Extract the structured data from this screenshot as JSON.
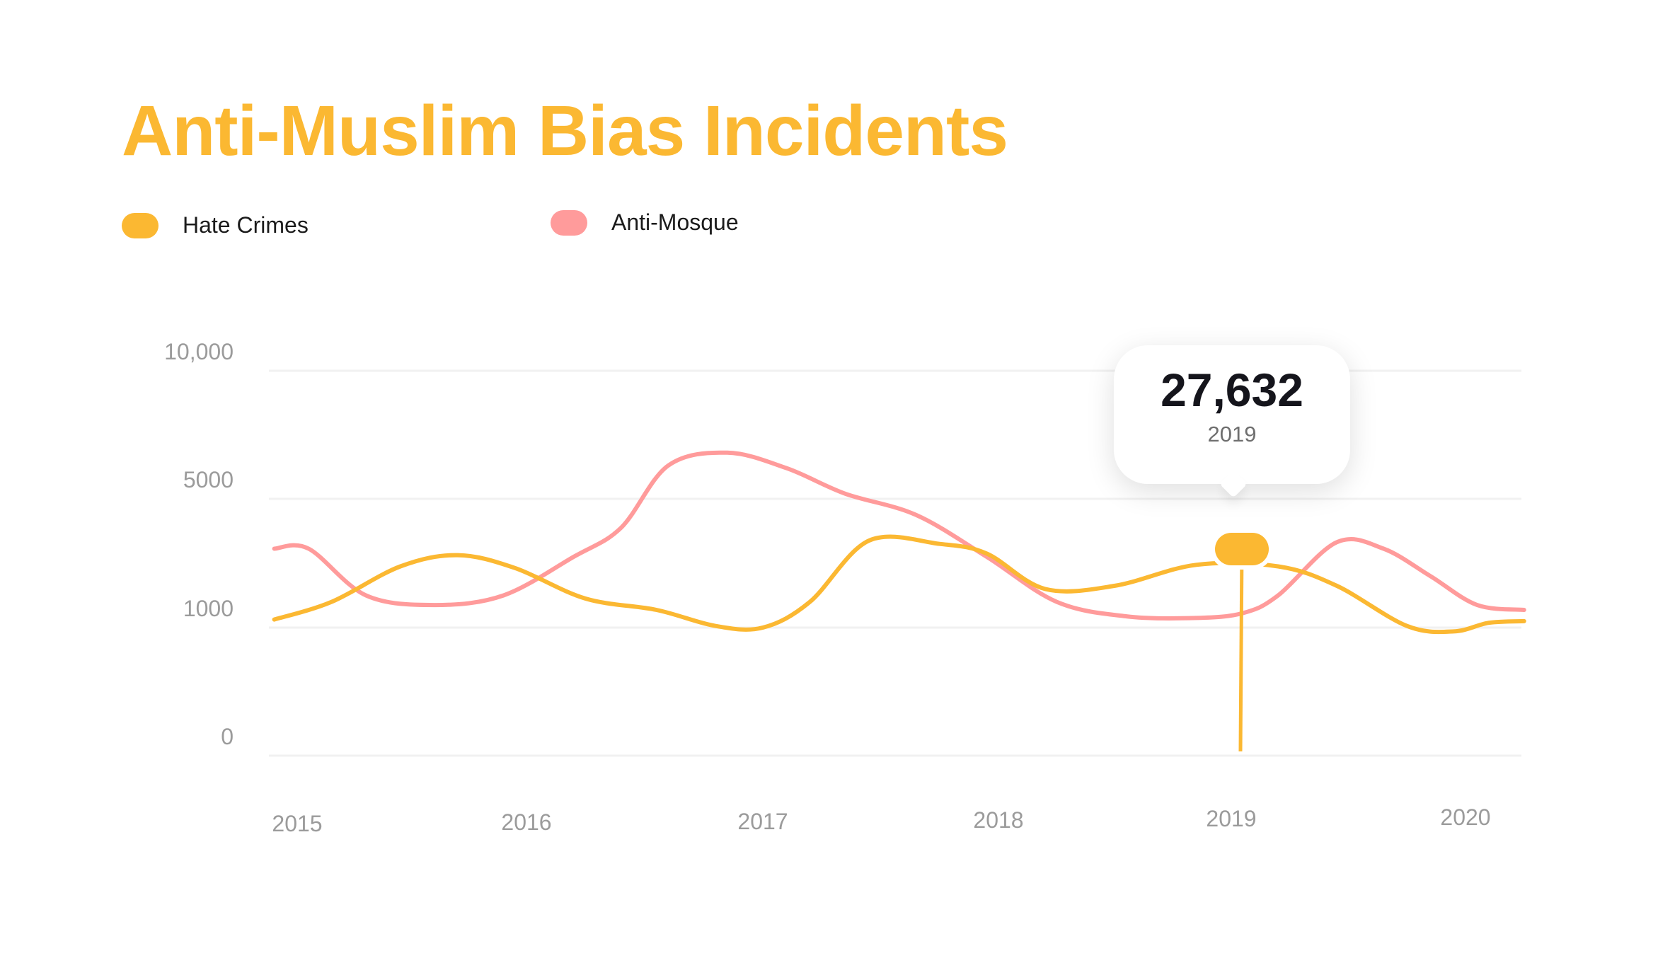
{
  "colors": {
    "title": "#FBB832",
    "hate_crimes": "#FBB832",
    "anti_mosque": "#FF9B9B"
  },
  "chart_data": {
    "type": "line",
    "title": "Anti-Muslim Bias Incidents",
    "xlabel": "",
    "ylabel": "",
    "x_ticks": [
      "2015",
      "2016",
      "2017",
      "2018",
      "2019",
      "2020"
    ],
    "y_ticks": [
      "0",
      "1000",
      "5000",
      "10,000"
    ],
    "y_scale": "nonlinear (tick spacing equal for 0, 1000, 5000, 10,000)",
    "grid": "horizontal lines",
    "legend_position": "top-left",
    "series": [
      {
        "name": "Hate Crimes",
        "color": "#FBB832",
        "x": [
          2014.9,
          2015.15,
          2015.45,
          2015.7,
          2015.95,
          2016.25,
          2016.55,
          2016.8,
          2017.0,
          2017.2,
          2017.45,
          2017.75,
          2017.95,
          2018.2,
          2018.5,
          2018.85,
          2019.2,
          2019.45,
          2019.75,
          2019.95,
          2020.1,
          2020.25
        ],
        "values": [
          1250,
          1800,
          2900,
          3250,
          2850,
          1900,
          1550,
          1050,
          1000,
          1800,
          3700,
          3600,
          3300,
          2200,
          2300,
          2950,
          2900,
          2300,
          1050,
          970,
          1150,
          1200
        ]
      },
      {
        "name": "Anti-Mosque",
        "color": "#FF9B9B",
        "x": [
          2014.9,
          2015.05,
          2015.3,
          2015.6,
          2015.9,
          2016.2,
          2016.4,
          2016.6,
          2016.85,
          2017.1,
          2017.35,
          2017.65,
          2017.95,
          2018.25,
          2018.55,
          2018.85,
          2019.05,
          2019.2,
          2019.45,
          2019.65,
          2019.85,
          2020.05,
          2020.25
        ],
        "values": [
          3450,
          3450,
          2000,
          1700,
          2000,
          3200,
          4100,
          6300,
          6800,
          6200,
          5200,
          4500,
          3200,
          1800,
          1350,
          1300,
          1450,
          2000,
          3650,
          3450,
          2600,
          1700,
          1550
        ]
      }
    ],
    "highlight": {
      "series": "Hate Crimes",
      "x": "2019",
      "label": "27,632"
    }
  }
}
